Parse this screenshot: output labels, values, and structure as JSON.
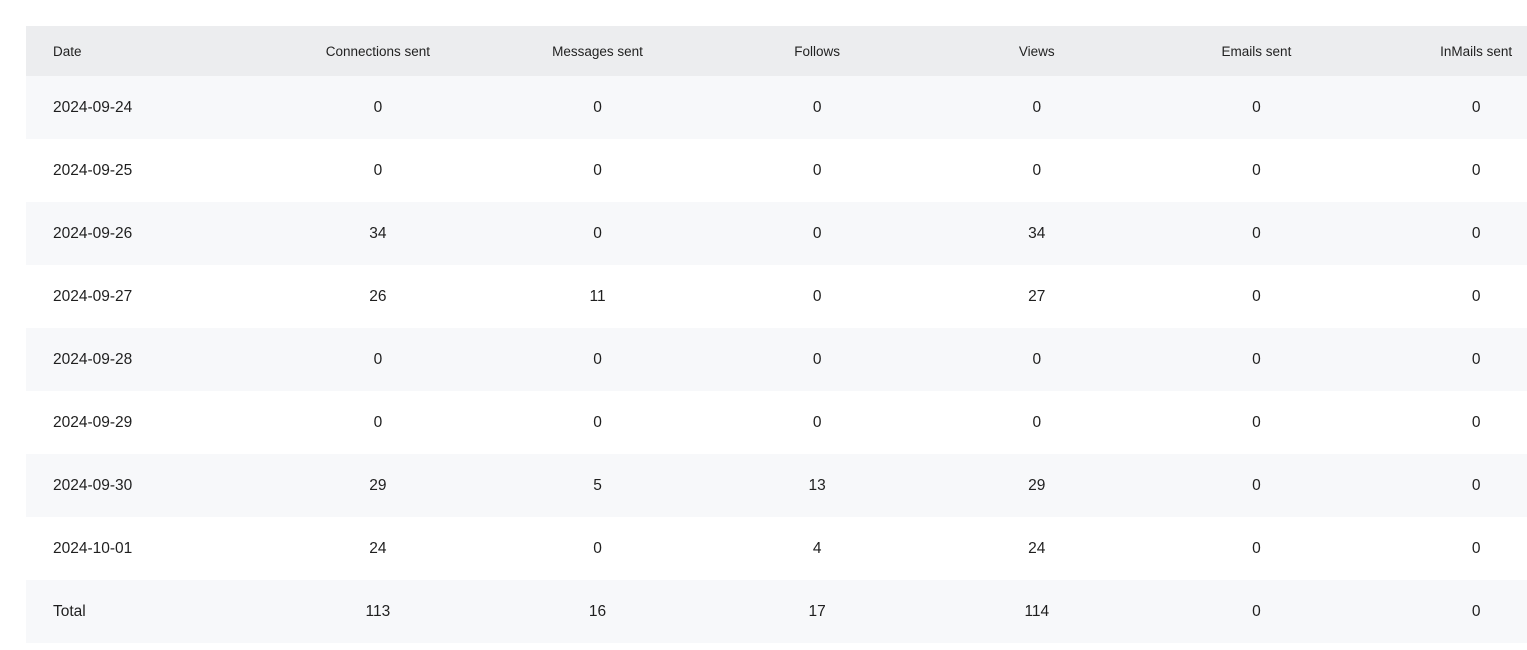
{
  "table": {
    "headers": [
      "Date",
      "Connections sent",
      "Messages sent",
      "Follows",
      "Views",
      "Emails sent",
      "InMails sent"
    ],
    "rows": [
      [
        "2024-09-24",
        "0",
        "0",
        "0",
        "0",
        "0",
        "0"
      ],
      [
        "2024-09-25",
        "0",
        "0",
        "0",
        "0",
        "0",
        "0"
      ],
      [
        "2024-09-26",
        "34",
        "0",
        "0",
        "34",
        "0",
        "0"
      ],
      [
        "2024-09-27",
        "26",
        "11",
        "0",
        "27",
        "0",
        "0"
      ],
      [
        "2024-09-28",
        "0",
        "0",
        "0",
        "0",
        "0",
        "0"
      ],
      [
        "2024-09-29",
        "0",
        "0",
        "0",
        "0",
        "0",
        "0"
      ],
      [
        "2024-09-30",
        "29",
        "5",
        "13",
        "29",
        "0",
        "0"
      ],
      [
        "2024-10-01",
        "24",
        "0",
        "4",
        "24",
        "0",
        "0"
      ],
      [
        "Total",
        "113",
        "16",
        "17",
        "114",
        "0",
        "0"
      ]
    ]
  }
}
